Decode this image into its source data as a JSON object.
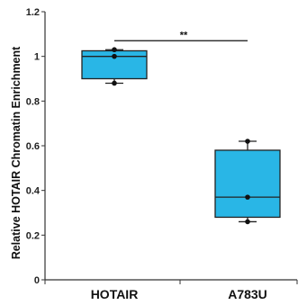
{
  "chart_data": {
    "type": "box",
    "ylabel": "Relative HOTAIR Chromatin Enrichment",
    "ylim": [
      0,
      1.2
    ],
    "yticks": [
      0,
      0.2,
      0.4,
      0.6,
      0.8,
      1,
      1.2
    ],
    "ytick_labels": [
      "0",
      "0.2",
      "0.4",
      "0.6",
      "0.8",
      "1",
      "1.2"
    ],
    "categories": [
      "HOTAIR",
      "A783U"
    ],
    "boxes": [
      {
        "category": "HOTAIR",
        "min": 0.88,
        "q1": 0.9,
        "median": 1.0,
        "q3": 1.025,
        "max": 1.03,
        "points": [
          0.88,
          1.0,
          1.03
        ]
      },
      {
        "category": "A783U",
        "min": 0.26,
        "q1": 0.28,
        "median": 0.37,
        "q3": 0.58,
        "max": 0.62,
        "points": [
          0.26,
          0.37,
          0.62
        ]
      }
    ],
    "significance": {
      "label": "**",
      "from": "HOTAIR",
      "to": "A783U",
      "y": 1.07
    },
    "colors": {
      "box_fill": "#29b6e6",
      "stroke": "#222222",
      "point": "#111111"
    }
  }
}
